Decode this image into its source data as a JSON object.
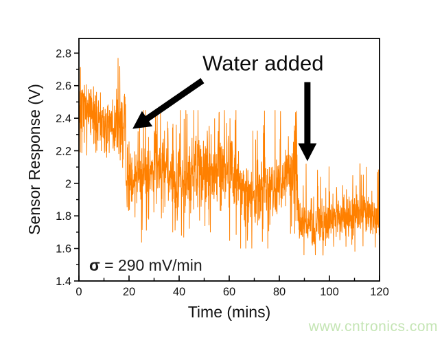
{
  "page": {
    "background": "#ffffff",
    "watermark": {
      "text": "www.cntronics.com",
      "color": "#c4e5b4"
    }
  },
  "chart_data": {
    "type": "line",
    "title": "",
    "xlabel": "Time (mins)",
    "ylabel": "Sensor Response (V)",
    "xlim": [
      0,
      120
    ],
    "ylim": [
      1.4,
      2.89
    ],
    "grid": false,
    "legend": null,
    "line_color": "#FF8000",
    "frame_color": "#000000",
    "x_major_ticks": [
      0,
      20,
      40,
      60,
      80,
      100,
      120
    ],
    "x_tick_labels": [
      "0",
      "20",
      "40",
      "60",
      "80",
      "100",
      "120"
    ],
    "x_minor_step": 10,
    "y_major_ticks": [
      1.4,
      1.6,
      1.8,
      2.0,
      2.2,
      2.4,
      2.6,
      2.8
    ],
    "y_tick_labels": [
      "1.4",
      "1.6",
      "1.8",
      "2",
      "2.2",
      "2.4",
      "2.6",
      "2.8"
    ],
    "y_minor_step": 0.1,
    "annotations": {
      "water_added": {
        "text": "Water added",
        "t": 73.5,
        "v": 2.694
      },
      "sigma": {
        "symbol": "σ",
        "text": " = 290 mV/min",
        "t": 4.1,
        "v": 1.463
      }
    },
    "arrows": [
      {
        "name": "water-added-arrow-diagonal",
        "from": [
          49.3,
          2.631
        ],
        "to": [
          21.4,
          2.335
        ]
      },
      {
        "name": "water-added-arrow-vertical",
        "from": [
          91.2,
          2.622
        ],
        "to": [
          91.2,
          2.136
        ]
      }
    ],
    "series": {
      "name": "sensor-response",
      "description": "Noisy sensor voltage trace; level drops after each water addition",
      "points_per_min": 13,
      "noise_seed": 7,
      "segments": [
        {
          "t_start": 0,
          "t_end": 18.7,
          "mean": 2.42,
          "min": 2.08,
          "max": 2.77,
          "band": 0.12,
          "spike_prob": 0.22,
          "spike_amp": 0.26,
          "spike_bias": 0.5,
          "wander": 0.8
        },
        {
          "t_start": 18.7,
          "t_end": 87.2,
          "mean": 2.04,
          "min": 1.6,
          "max": 2.45,
          "band": 0.13,
          "spike_prob": 0.26,
          "spike_amp": 0.38,
          "spike_bias": 0.5,
          "wander": 1.0
        },
        {
          "t_start": 87.2,
          "t_end": 120,
          "mean": 1.77,
          "min": 1.56,
          "max": 2.12,
          "band": 0.085,
          "spike_prob": 0.18,
          "spike_amp": 0.26,
          "spike_bias": 0.35,
          "wander": 0.5
        }
      ]
    }
  }
}
